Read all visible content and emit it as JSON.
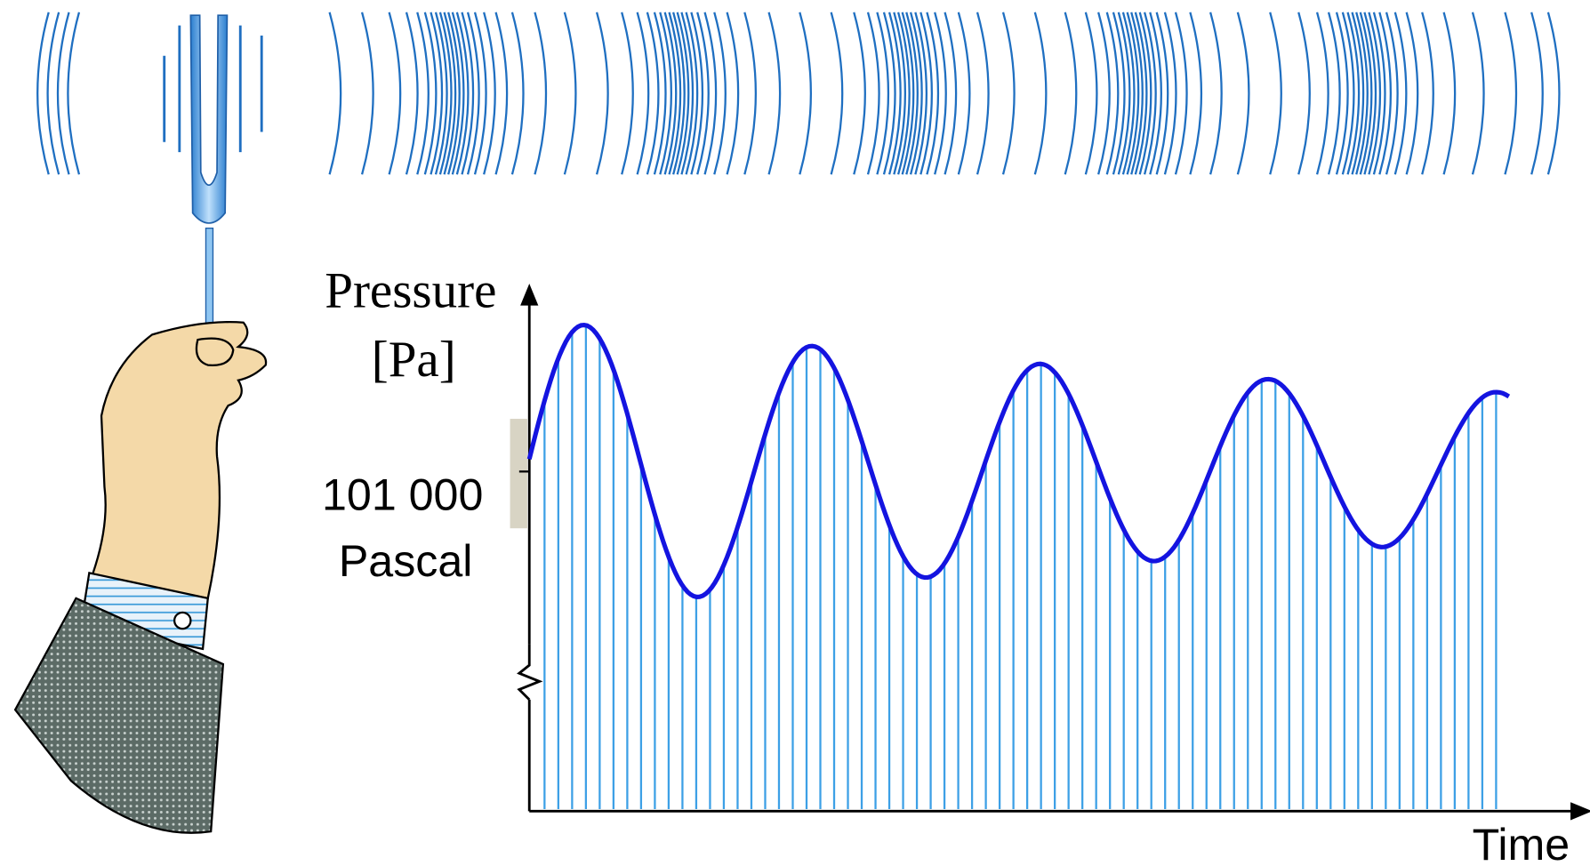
{
  "y_label": [
    "Pressure",
    "[Pa]"
  ],
  "reference_label": [
    "101 000",
    "Pascal"
  ],
  "x_label": "Time"
}
